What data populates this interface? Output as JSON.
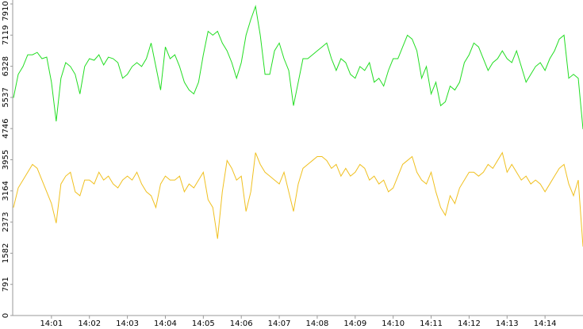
{
  "chart_data": {
    "type": "line",
    "x": [
      0,
      0.125,
      0.25,
      0.375,
      0.5,
      0.625,
      0.75,
      0.875,
      1,
      1.125,
      1.25,
      1.375,
      1.5,
      1.625,
      1.75,
      1.875,
      2,
      2.125,
      2.25,
      2.375,
      2.5,
      2.625,
      2.75,
      2.875,
      3,
      3.125,
      3.25,
      3.375,
      3.5,
      3.625,
      3.75,
      3.875,
      4,
      4.125,
      4.25,
      4.375,
      4.5,
      4.625,
      4.75,
      4.875,
      5,
      5.125,
      5.25,
      5.375,
      5.5,
      5.625,
      5.75,
      5.875,
      6,
      6.125,
      6.25,
      6.375,
      6.5,
      6.625,
      6.75,
      6.875,
      7,
      7.125,
      7.25,
      7.375,
      7.5,
      7.625,
      7.75,
      7.875,
      8,
      8.125,
      8.25,
      8.375,
      8.5,
      8.625,
      8.75,
      8.875,
      9,
      9.125,
      9.25,
      9.375,
      9.5,
      9.625,
      9.75,
      9.875,
      10,
      10.125,
      10.25,
      10.375,
      10.5,
      10.625,
      10.75,
      10.875,
      11,
      11.125,
      11.25,
      11.375,
      11.5,
      11.625,
      11.75,
      11.875,
      12,
      12.125,
      12.25,
      12.375,
      12.5,
      12.625,
      12.75,
      12.875,
      13,
      13.125,
      13.25,
      13.375,
      13.5,
      13.625,
      13.75,
      13.875,
      14,
      14.125,
      14.25,
      14.375,
      14.5,
      14.625,
      14.75,
      14.875,
      15
    ],
    "series": [
      {
        "color": "#22dd22",
        "values": [
          5527,
          6123,
          6322,
          6620,
          6620,
          6680,
          6521,
          6560,
          5924,
          4930,
          6024,
          6421,
          6322,
          6123,
          5626,
          6322,
          6521,
          6481,
          6620,
          6362,
          6560,
          6521,
          6421,
          6024,
          6123,
          6322,
          6421,
          6322,
          6521,
          6918,
          6322,
          5725,
          6819,
          6521,
          6620,
          6322,
          5924,
          5725,
          5626,
          5924,
          6620,
          7216,
          7117,
          7216,
          6918,
          6720,
          6421,
          6024,
          6421,
          7117,
          7515,
          7850,
          7117,
          6123,
          6123,
          6720,
          6918,
          6521,
          6222,
          5328,
          5924,
          6521,
          6521,
          6620,
          6720,
          6819,
          6918,
          6521,
          6222,
          6521,
          6421,
          6123,
          6024,
          6322,
          6222,
          6421,
          5924,
          6024,
          5825,
          6222,
          6521,
          6521,
          6819,
          7117,
          7018,
          6720,
          6024,
          6322,
          5626,
          5924,
          5328,
          5427,
          5825,
          5725,
          5924,
          6421,
          6620,
          6918,
          6819,
          6521,
          6222,
          6421,
          6521,
          6720,
          6521,
          6421,
          6720,
          6322,
          5924,
          6123,
          6322,
          6421,
          6222,
          6521,
          6720,
          7018,
          7117,
          6024,
          6123,
          6024,
          4731
        ]
      },
      {
        "color": "#f0c020",
        "values": [
          2743,
          3240,
          3439,
          3638,
          3837,
          3737,
          3439,
          3141,
          2843,
          2346,
          3340,
          3539,
          3638,
          3141,
          3042,
          3439,
          3439,
          3340,
          3638,
          3439,
          3539,
          3340,
          3240,
          3439,
          3539,
          3439,
          3638,
          3340,
          3141,
          3042,
          2743,
          3340,
          3539,
          3439,
          3439,
          3539,
          3141,
          3340,
          3240,
          3439,
          3638,
          2942,
          2743,
          1948,
          3141,
          3936,
          3737,
          3439,
          3539,
          2644,
          3141,
          4135,
          3837,
          3638,
          3539,
          3439,
          3340,
          3638,
          3141,
          2644,
          3340,
          3737,
          3837,
          3936,
          4036,
          4036,
          3936,
          3737,
          3837,
          3539,
          3737,
          3539,
          3638,
          3837,
          3737,
          3439,
          3539,
          3340,
          3439,
          3141,
          3240,
          3539,
          3837,
          3936,
          4036,
          3638,
          3439,
          3340,
          3638,
          3141,
          2743,
          2545,
          3042,
          2843,
          3240,
          3439,
          3638,
          3638,
          3539,
          3638,
          3837,
          3737,
          3936,
          4135,
          3638,
          3837,
          3638,
          3439,
          3539,
          3340,
          3439,
          3340,
          3141,
          3340,
          3539,
          3737,
          3837,
          3340,
          3042,
          3439,
          1749
        ]
      }
    ],
    "xlim": [
      0,
      15
    ],
    "xticks": [
      {
        "value": 1,
        "label": "14:01"
      },
      {
        "value": 2,
        "label": "14:02"
      },
      {
        "value": 3,
        "label": "14:03"
      },
      {
        "value": 4,
        "label": "14:04"
      },
      {
        "value": 5,
        "label": "14:05"
      },
      {
        "value": 6,
        "label": "14:06"
      },
      {
        "value": 7,
        "label": "14:07"
      },
      {
        "value": 8,
        "label": "14:08"
      },
      {
        "value": 9,
        "label": "14:09"
      },
      {
        "value": 10,
        "label": "14:10"
      },
      {
        "value": 11,
        "label": "14:11"
      },
      {
        "value": 12,
        "label": "14:12"
      },
      {
        "value": 13,
        "label": "14:13"
      },
      {
        "value": 14,
        "label": "14:14"
      }
    ],
    "ylim": [
      0,
      7910
    ],
    "yticks": [
      0,
      791,
      1582,
      2373,
      3164,
      3955,
      4746,
      5537,
      6328,
      7119,
      7910
    ]
  }
}
